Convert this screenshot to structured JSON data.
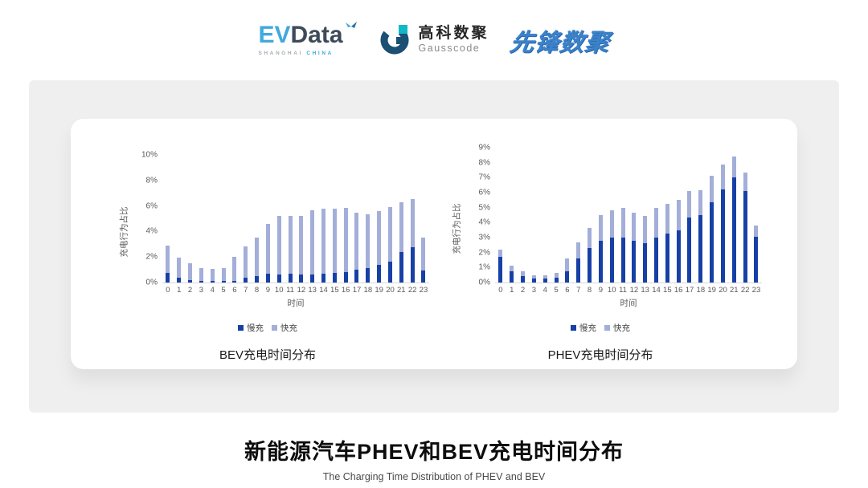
{
  "header": {
    "evdata": {
      "ev": "EV",
      "data": "Data",
      "sub_left": "SHANGHAI",
      "sub_right": "CHINA"
    },
    "gausscode": {
      "cn": "高科数聚",
      "en": "Gausscode"
    },
    "xianfeng": {
      "text": "先锋数聚"
    }
  },
  "chart_data": [
    {
      "type": "bar",
      "stacked": true,
      "title": "BEV充电时间分布",
      "ylabel": "充电行为占比",
      "xlabel": "时间",
      "ylim": [
        0,
        10
      ],
      "y_tick_step": 2,
      "y_tick_suffix": "%",
      "grid": false,
      "legend_position": "bottom",
      "categories": [
        "0",
        "1",
        "2",
        "3",
        "4",
        "5",
        "6",
        "7",
        "8",
        "9",
        "10",
        "11",
        "12",
        "13",
        "14",
        "15",
        "16",
        "17",
        "18",
        "19",
        "20",
        "21",
        "22",
        "23"
      ],
      "series": [
        {
          "name": "慢充",
          "color": "#1740a6",
          "values": [
            0.75,
            0.35,
            0.2,
            0.1,
            0.1,
            0.1,
            0.15,
            0.35,
            0.5,
            0.7,
            0.65,
            0.7,
            0.6,
            0.65,
            0.7,
            0.75,
            0.85,
            1.0,
            1.15,
            1.4,
            1.65,
            2.4,
            2.75,
            0.95
          ]
        },
        {
          "name": "快充",
          "color": "#a3aed9",
          "values": [
            2.15,
            1.6,
            1.3,
            1.05,
            1.0,
            1.05,
            1.85,
            2.45,
            3.05,
            3.9,
            4.55,
            4.55,
            4.65,
            5.0,
            5.1,
            5.05,
            5.0,
            4.5,
            4.2,
            4.2,
            4.25,
            3.9,
            3.8,
            2.6
          ]
        }
      ]
    },
    {
      "type": "bar",
      "stacked": true,
      "title": "PHEV充电时间分布",
      "ylabel": "充电行为占比",
      "xlabel": "时间",
      "ylim": [
        0,
        9
      ],
      "y_tick_step": 1,
      "y_tick_suffix": "%",
      "grid": false,
      "legend_position": "bottom",
      "categories": [
        "0",
        "1",
        "2",
        "3",
        "4",
        "5",
        "6",
        "7",
        "8",
        "9",
        "10",
        "11",
        "12",
        "13",
        "14",
        "15",
        "16",
        "17",
        "18",
        "19",
        "20",
        "21",
        "22",
        "23"
      ],
      "series": [
        {
          "name": "慢充",
          "color": "#1740a6",
          "values": [
            1.7,
            0.75,
            0.45,
            0.25,
            0.25,
            0.3,
            0.75,
            1.6,
            2.3,
            2.8,
            3.0,
            3.0,
            2.8,
            2.6,
            3.0,
            3.25,
            3.5,
            4.35,
            4.5,
            5.35,
            6.2,
            7.0,
            6.1,
            3.05
          ]
        },
        {
          "name": "快充",
          "color": "#a3aed9",
          "values": [
            0.5,
            0.4,
            0.3,
            0.25,
            0.25,
            0.35,
            0.85,
            1.1,
            1.35,
            1.7,
            1.8,
            2.0,
            1.85,
            1.85,
            2.0,
            2.0,
            2.0,
            1.75,
            1.65,
            1.75,
            1.7,
            1.4,
            1.25,
            0.75
          ]
        }
      ]
    }
  ],
  "footer": {
    "title": "新能源汽车PHEV和BEV充电时间分布",
    "subtitle": "The Charging Time Distribution of PHEV and BEV"
  }
}
